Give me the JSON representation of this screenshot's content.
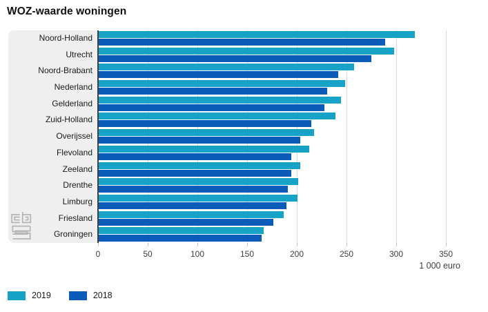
{
  "title": "WOZ-waarde woningen",
  "chart_data": {
    "type": "bar",
    "orientation": "horizontal",
    "title": "WOZ-waarde woningen",
    "xlabel": "1 000 euro",
    "xticks": [
      0,
      50,
      100,
      150,
      200,
      250,
      300,
      350
    ],
    "xlim": [
      0,
      350
    ],
    "grid": true,
    "legend_position": "bottom-left",
    "categories": [
      "Noord-Holland",
      "Utrecht",
      "Noord-Brabant",
      "Nederland",
      "Gelderland",
      "Zuid-Holland",
      "Overijssel",
      "Flevoland",
      "Zeeland",
      "Drenthe",
      "Limburg",
      "Friesland",
      "Groningen"
    ],
    "series": [
      {
        "name": "2019",
        "color": "#17a2c8",
        "values": [
          318,
          297,
          257,
          248,
          244,
          238,
          217,
          212,
          203,
          201,
          200,
          186,
          166
        ]
      },
      {
        "name": "2018",
        "color": "#0b5bb8",
        "values": [
          288,
          274,
          241,
          230,
          227,
          214,
          203,
          194,
          194,
          190,
          189,
          176,
          164
        ]
      }
    ]
  },
  "logo": {
    "name": "CBS"
  }
}
